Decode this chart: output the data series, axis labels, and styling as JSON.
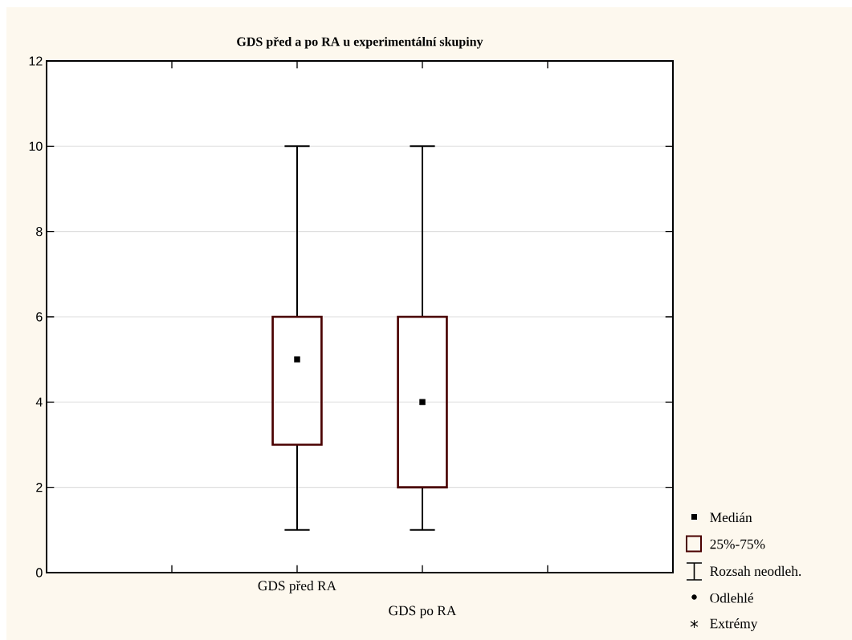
{
  "chart_data": {
    "type": "box",
    "title": "GDS před a po RA u experimentální skupiny",
    "categories": [
      "GDS před RA",
      "GDS po RA"
    ],
    "series": [
      {
        "color": "#4a0000",
        "boxes": [
          {
            "low": 1,
            "q1": 3,
            "median": 5,
            "q3": 6,
            "high": 10
          },
          {
            "low": 1,
            "q1": 2,
            "median": 4,
            "q3": 6,
            "high": 10
          }
        ]
      }
    ],
    "ylim": [
      0,
      12
    ],
    "yticks": [
      0,
      2,
      4,
      6,
      8,
      10,
      12
    ],
    "grid": "y",
    "annotations": [
      "Medián",
      "25%-75%",
      "Rozsah neodleh.",
      "Odlehlé",
      "Extrémy"
    ]
  }
}
